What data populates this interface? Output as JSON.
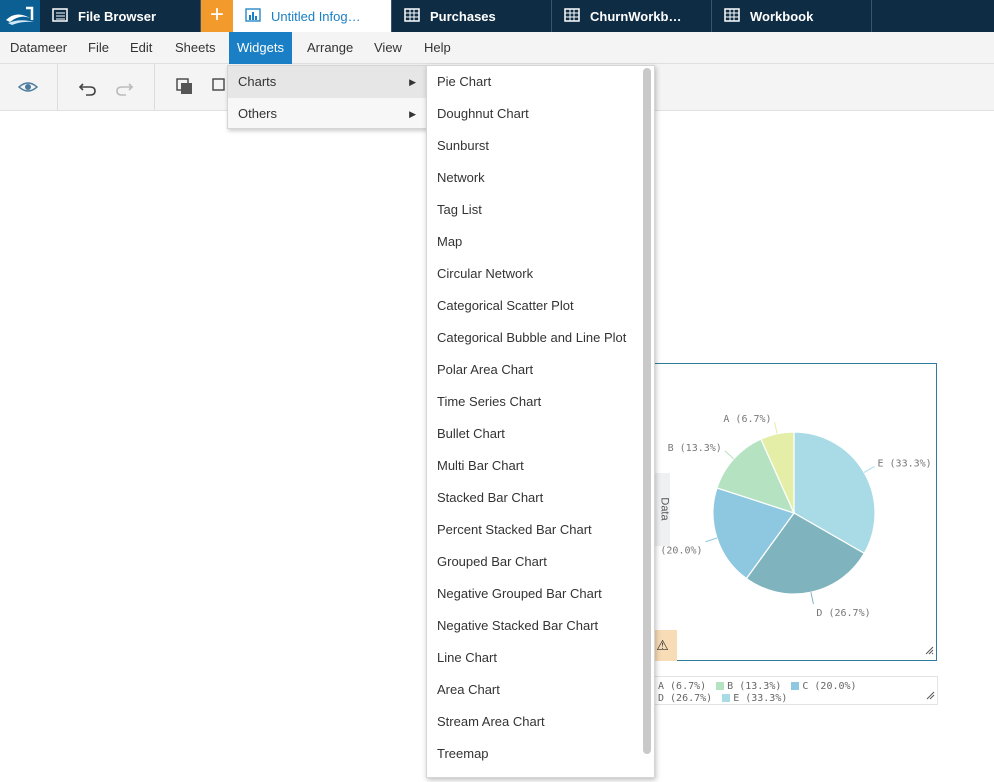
{
  "tabs": [
    {
      "label": "File Browser",
      "icon": "list-icon"
    },
    {
      "label": "Untitled Infog…",
      "icon": "bar-chart-icon",
      "active": true
    },
    {
      "label": "Purchases",
      "icon": "table-icon"
    },
    {
      "label": "ChurnWorkb…",
      "icon": "table-icon"
    },
    {
      "label": "Workbook",
      "icon": "table-icon"
    }
  ],
  "add_tab_label": "+",
  "menubar": [
    "Datameer",
    "File",
    "Edit",
    "Sheets",
    "Widgets",
    "Arrange",
    "View",
    "Help"
  ],
  "widgets_menu": {
    "items": [
      {
        "label": "Charts",
        "arrow": "▶"
      },
      {
        "label": "Others",
        "arrow": "▶"
      }
    ]
  },
  "charts_submenu": [
    "Pie Chart",
    "Doughnut Chart",
    "Sunburst",
    "Network",
    "Tag List",
    "Map",
    "Circular Network",
    "Categorical Scatter Plot",
    "Categorical Bubble and Line Plot",
    "Polar Area Chart",
    "Time Series Chart",
    "Bullet Chart",
    "Multi Bar Chart",
    "Stacked Bar Chart",
    "Percent Stacked Bar Chart",
    "Grouped Bar Chart",
    "Negative Grouped Bar Chart",
    "Negative Stacked Bar Chart",
    "Line Chart",
    "Area Chart",
    "Stream Area Chart",
    "Treemap"
  ],
  "data_tab_label": "Data",
  "warning_glyph": "⚠",
  "colors": {
    "accent": "#1a7fc4",
    "tabbar": "#0e2c44",
    "orange": "#f39a2d"
  },
  "chart_data": {
    "type": "pie",
    "slices": [
      {
        "label": "A (6.7%)",
        "value": 6.7,
        "color": "#e4eea6"
      },
      {
        "label": "B (13.3%)",
        "value": 13.3,
        "color": "#b5e3c2"
      },
      {
        "label": "C (20.0%)",
        "value": 20.0,
        "color": "#8ec8e0"
      },
      {
        "label": "D (26.7%)",
        "value": 26.7,
        "color": "#7fb3bd"
      },
      {
        "label": "E (33.3%)",
        "value": 33.3,
        "color": "#a9dbe6"
      }
    ],
    "outer_labels": {
      "A": "A (6.7%)",
      "B": "B (13.3%)",
      "C": "(20.0%)",
      "D": "D (26.7%)",
      "E": "E (33.3%)"
    }
  }
}
